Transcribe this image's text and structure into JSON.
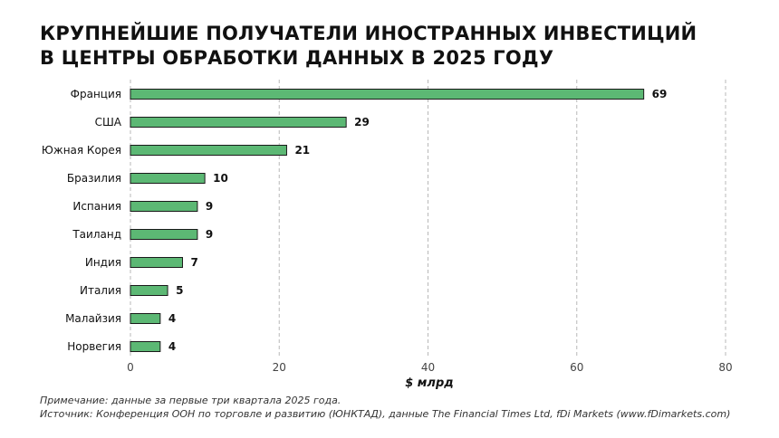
{
  "title_lines": [
    "КРУПНЕЙШИЕ ПОЛУЧАТЕЛИ ИНОСТРАННЫХ ИНВЕСТИЦИЙ",
    "В ЦЕНТРЫ ОБРАБОТКИ ДАННЫХ В 2025 ГОДУ"
  ],
  "notes": {
    "note": "Примечание: данные за первые три квартала 2025 года.",
    "source": "Источник: Конференция ООН по торговле и развитию (ЮНКТАД), данные The Financial Times Ltd, fDi Markets (www.fDimarkets.com)"
  },
  "colors": {
    "bar_fill": "#5cb874",
    "bar_stroke": "#1a1a1a",
    "grid": "#b8b8b8",
    "text": "#111111"
  },
  "chart_data": {
    "type": "bar",
    "orientation": "horizontal",
    "categories": [
      "Франция",
      "США",
      "Южная Корея",
      "Бразилия",
      "Испания",
      "Таиланд",
      "Индия",
      "Италия",
      "Малайзия",
      "Норвегия"
    ],
    "values": [
      69,
      29,
      21,
      10,
      9,
      9,
      7,
      5,
      4,
      4
    ],
    "data_labels": [
      "69",
      "29",
      "21",
      "10",
      "9",
      "9",
      "7",
      "5",
      "4",
      "4"
    ],
    "xlabel": "$ млрд",
    "xlim": [
      0,
      80
    ],
    "xticks": [
      0,
      20,
      40,
      60,
      80
    ],
    "xtick_labels": [
      "0",
      "20",
      "40",
      "60",
      "80"
    ],
    "grid": "vertical dashed"
  }
}
